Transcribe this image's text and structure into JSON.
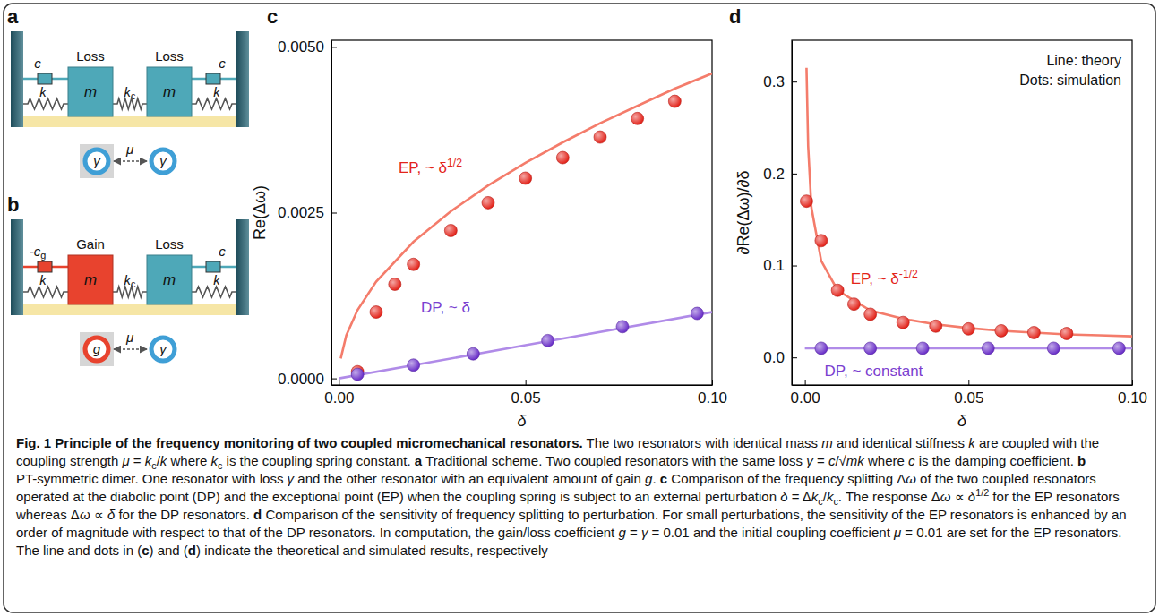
{
  "diagrams": [
    {
      "panel": "a",
      "masses": [
        {
          "label": "m",
          "caption": "Loss",
          "color": "#4ea8b8"
        },
        {
          "label": "m",
          "caption": "Loss",
          "color": "#4ea8b8"
        }
      ],
      "springs": [
        {
          "text": "k"
        },
        {
          "text": "k",
          "sub": "c"
        },
        {
          "text": "k"
        }
      ],
      "dampers": [
        {
          "text": "c",
          "color": "#4ea8b8"
        },
        {
          "text": "c",
          "color": "#4ea8b8"
        }
      ],
      "rings": [
        {
          "symbol": "γ",
          "color": "#3f9fd6"
        },
        {
          "symbol": "γ",
          "color": "#3f9fd6"
        }
      ],
      "coupling": "μ"
    },
    {
      "panel": "b",
      "masses": [
        {
          "label": "m",
          "caption": "Gain",
          "color": "#e8432e"
        },
        {
          "label": "m",
          "caption": "Loss",
          "color": "#4ea8b8"
        }
      ],
      "springs": [
        {
          "text": "k"
        },
        {
          "text": "k",
          "sub": "c"
        },
        {
          "text": "k"
        }
      ],
      "dampers": [
        {
          "text": "-c",
          "sub": "g",
          "color": "#e8432e"
        },
        {
          "text": "c",
          "color": "#4ea8b8"
        }
      ],
      "rings": [
        {
          "symbol": "g",
          "color": "#e8432e"
        },
        {
          "symbol": "γ",
          "color": "#3f9fd6"
        }
      ],
      "coupling": "μ"
    }
  ],
  "chart_data": [
    {
      "type": "line",
      "panel": "c",
      "x_label": "δ",
      "y_label": "Re(Δω)",
      "xlim": [
        -0.002,
        0.1
      ],
      "ylim": [
        -0.0001,
        0.0051
      ],
      "xticks": [
        {
          "value": 0,
          "label": "0.00"
        },
        0.05,
        {
          "value": 0.1,
          "label": "0.10"
        }
      ],
      "yticks": [
        {
          "value": 0,
          "label": "0.0000"
        },
        {
          "value": 0.0025,
          "label": "0.0025"
        },
        {
          "value": 0.005,
          "label": "0.0050"
        }
      ],
      "series": [
        {
          "type": "line",
          "line_style": "solid",
          "color": "#f47c6b",
          "x": [
            0.0005,
            0.002,
            0.005,
            0.01,
            0.02,
            0.03,
            0.04,
            0.05,
            0.06,
            0.07,
            0.08,
            0.09,
            0.1
          ],
          "values": [
            0.0003,
            0.00065,
            0.00103,
            0.00146,
            0.00206,
            0.00252,
            0.00291,
            0.00325,
            0.00356,
            0.00385,
            0.00411,
            0.00437,
            0.0046
          ]
        },
        {
          "type": "scatter",
          "marker": "circle",
          "color": "#e3241b",
          "x": [
            0.005,
            0.01,
            0.015,
            0.02,
            0.03,
            0.04,
            0.05,
            0.06,
            0.07,
            0.08,
            0.09
          ],
          "values": [
            0.0001,
            0.001,
            0.00142,
            0.00172,
            0.00223,
            0.00265,
            0.00302,
            0.00333,
            0.00364,
            0.00392,
            0.00418
          ]
        },
        {
          "type": "line",
          "line_style": "solid",
          "color": "#b08be8",
          "x": [
            0,
            0.05,
            0.1
          ],
          "values": [
            0,
            0.0005,
            0.001
          ]
        },
        {
          "type": "scatter",
          "marker": "circle",
          "color": "#6a2fc8",
          "x": [
            0.005,
            0.02,
            0.036,
            0.056,
            0.076,
            0.096
          ],
          "values": [
            6e-05,
            0.0002,
            0.00037,
            0.00057,
            0.00078,
            0.00098
          ]
        }
      ],
      "annotations": [
        {
          "text": "EP, ~ δ",
          "superscript": "1/2",
          "color": "#e3241b"
        },
        {
          "text": "DP, ~ δ",
          "color": "#7b3fd0"
        }
      ]
    },
    {
      "type": "line",
      "panel": "d",
      "x_label": "δ",
      "y_label": "∂Re(Δω)/∂δ",
      "xlim": [
        -0.004,
        0.1
      ],
      "ylim": [
        -0.03,
        0.345
      ],
      "xticks": [
        {
          "value": 0,
          "label": "0.00"
        },
        0.05,
        {
          "value": 0.1,
          "label": "0.10"
        }
      ],
      "yticks": [
        {
          "value": 0,
          "label": "0.0"
        },
        0.1,
        0.2,
        0.3
      ],
      "series": [
        {
          "type": "line",
          "line_style": "solid",
          "color": "#f47c6b",
          "x": [
            0.0005,
            0.001,
            0.002,
            0.005,
            0.01,
            0.02,
            0.03,
            0.04,
            0.05,
            0.06,
            0.07,
            0.08,
            0.09,
            0.1
          ],
          "values": [
            0.315,
            0.23,
            0.163,
            0.105,
            0.073,
            0.051,
            0.042,
            0.036,
            0.032,
            0.029,
            0.027,
            0.025,
            0.024,
            0.023
          ]
        },
        {
          "type": "scatter",
          "marker": "circle",
          "color": "#e3241b",
          "x": [
            0.0005,
            0.005,
            0.01,
            0.015,
            0.02,
            0.03,
            0.04,
            0.05,
            0.06,
            0.07,
            0.08
          ],
          "values": [
            0.17,
            0.127,
            0.073,
            0.058,
            0.047,
            0.038,
            0.034,
            0.031,
            0.029,
            0.027,
            0.026
          ]
        },
        {
          "type": "line",
          "line_style": "solid",
          "color": "#b08be8",
          "x": [
            0,
            0.1
          ],
          "values": [
            0.01,
            0.01
          ]
        },
        {
          "type": "scatter",
          "marker": "circle",
          "color": "#6a2fc8",
          "x": [
            0.005,
            0.02,
            0.036,
            0.056,
            0.076,
            0.096
          ],
          "values": [
            0.01,
            0.01,
            0.01,
            0.01,
            0.01,
            0.01
          ]
        }
      ],
      "annotations": [
        {
          "text": "EP, ~ δ",
          "superscript": "-1/2",
          "color": "#e3241b"
        },
        {
          "text": "DP, ~ constant",
          "color": "#7b3fd0"
        }
      ],
      "notes": [
        "Line: theory",
        "Dots: simulation"
      ]
    }
  ],
  "caption": [
    {
      "text": "Fig. 1 Principle of the frequency monitoring of two coupled micromechanical resonators.",
      "style": "bold"
    },
    {
      "text": " The two resonators with identical mass "
    },
    {
      "text": "m",
      "style": "italic"
    },
    {
      "text": " and identical stiffness "
    },
    {
      "text": "k",
      "style": "italic"
    },
    {
      "text": " are coupled with the coupling strength "
    },
    {
      "text": "μ",
      "style": "italic"
    },
    {
      "text": " = "
    },
    {
      "text": "k",
      "style": "italic"
    },
    {
      "text": "c",
      "style": "sub"
    },
    {
      "text": "/"
    },
    {
      "text": "k",
      "style": "italic"
    },
    {
      "text": " where "
    },
    {
      "text": "k",
      "style": "italic"
    },
    {
      "text": "c",
      "style": "sub"
    },
    {
      "text": " is the coupling spring constant. "
    },
    {
      "text": "a",
      "style": "bold"
    },
    {
      "text": " Traditional scheme. Two coupled resonators with the same loss "
    },
    {
      "text": "γ",
      "style": "italic"
    },
    {
      "text": " = "
    },
    {
      "text": "c",
      "style": "italic"
    },
    {
      "text": "/√"
    },
    {
      "text": "mk",
      "style": "italic"
    },
    {
      "text": " where "
    },
    {
      "text": "c",
      "style": "italic"
    },
    {
      "text": " is the damping coefficient. "
    },
    {
      "text": "b",
      "style": "bold"
    },
    {
      "text": " PT-symmetric dimer. One resonator with loss "
    },
    {
      "text": "γ",
      "style": "italic"
    },
    {
      "text": " and the other resonator with an equivalent amount of gain "
    },
    {
      "text": "g",
      "style": "italic"
    },
    {
      "text": ". "
    },
    {
      "text": "c",
      "style": "bold"
    },
    {
      "text": " Comparison of the frequency splitting Δ"
    },
    {
      "text": "ω",
      "style": "italic"
    },
    {
      "text": " of the two coupled resonators operated at the diabolic point (DP) and the exceptional point (EP) when the coupling spring is subject to an external perturbation "
    },
    {
      "text": "δ",
      "style": "italic"
    },
    {
      "text": " = Δ"
    },
    {
      "text": "k",
      "style": "italic"
    },
    {
      "text": "c",
      "style": "sub"
    },
    {
      "text": "/"
    },
    {
      "text": "k",
      "style": "italic"
    },
    {
      "text": "c",
      "style": "sub"
    },
    {
      "text": ". The response Δ"
    },
    {
      "text": "ω",
      "style": "italic"
    },
    {
      "text": " ∝ "
    },
    {
      "text": "δ",
      "style": "italic"
    },
    {
      "text": "1/2",
      "style": "sup"
    },
    {
      "text": " for the EP resonators whereas Δ"
    },
    {
      "text": "ω",
      "style": "italic"
    },
    {
      "text": " ∝ "
    },
    {
      "text": "δ",
      "style": "italic"
    },
    {
      "text": " for the DP resonators. "
    },
    {
      "text": "d",
      "style": "bold"
    },
    {
      "text": " Comparison of the sensitivity of frequency splitting to perturbation. For small perturbations, the sensitivity of the EP resonators is enhanced by an order of magnitude with respect to that of the DP resonators. In computation, the gain/loss coefficient "
    },
    {
      "text": "g",
      "style": "italic"
    },
    {
      "text": " = "
    },
    {
      "text": "γ",
      "style": "italic"
    },
    {
      "text": " = 0.01 and the initial coupling coefficient "
    },
    {
      "text": "μ",
      "style": "italic"
    },
    {
      "text": " = 0.01 are set for the EP resonators. The line and dots in ("
    },
    {
      "text": "c",
      "style": "bold"
    },
    {
      "text": ") and ("
    },
    {
      "text": "d",
      "style": "bold"
    },
    {
      "text": ") indicate the theoretical and simulated results, respectively"
    }
  ]
}
